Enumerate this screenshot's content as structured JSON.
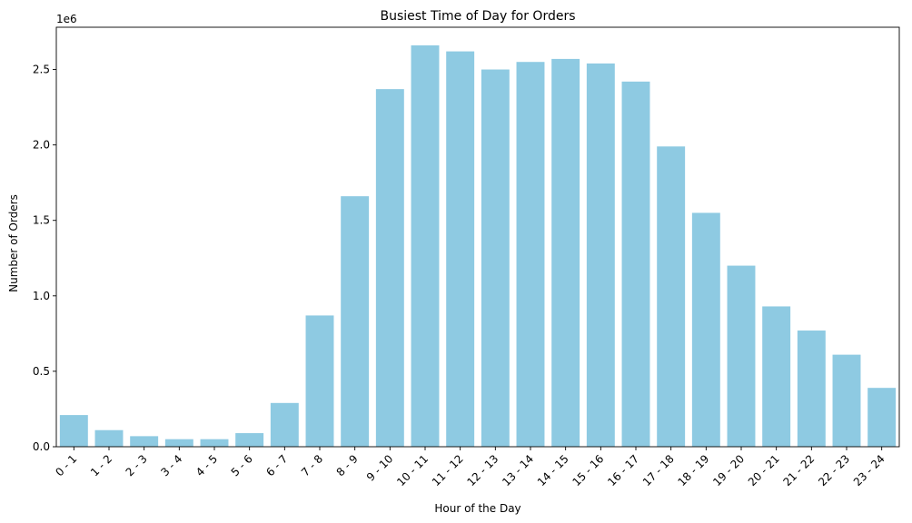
{
  "chart_data": {
    "type": "bar",
    "title": "Busiest Time of Day for Orders",
    "xlabel": "Hour of the Day",
    "ylabel": "Number of Orders",
    "y_offset_label": "1e6",
    "ylim": [
      0,
      2.78
    ],
    "y_ticks": [
      0.0,
      0.5,
      1.0,
      1.5,
      2.0,
      2.5
    ],
    "y_tick_labels": [
      "0.0",
      "0.5",
      "1.0",
      "1.5",
      "2.0",
      "2.5"
    ],
    "grid": false,
    "bar_color": "#8ECAE2",
    "categories": [
      "0 - 1",
      "1 - 2",
      "2 - 3",
      "3 - 4",
      "4 - 5",
      "5 - 6",
      "6 - 7",
      "7 - 8",
      "8 - 9",
      "9 - 10",
      "10 - 11",
      "11 - 12",
      "12 - 13",
      "13 - 14",
      "14 - 15",
      "15 - 16",
      "16 - 17",
      "17 - 18",
      "18 - 19",
      "19 - 20",
      "20 - 21",
      "21 - 22",
      "22 - 23",
      "23 - 24"
    ],
    "values": [
      0.21,
      0.11,
      0.07,
      0.05,
      0.05,
      0.09,
      0.29,
      0.87,
      1.66,
      2.37,
      2.66,
      2.62,
      2.5,
      2.55,
      2.57,
      2.54,
      2.42,
      1.99,
      1.55,
      1.2,
      0.93,
      0.77,
      0.61,
      0.39
    ]
  }
}
